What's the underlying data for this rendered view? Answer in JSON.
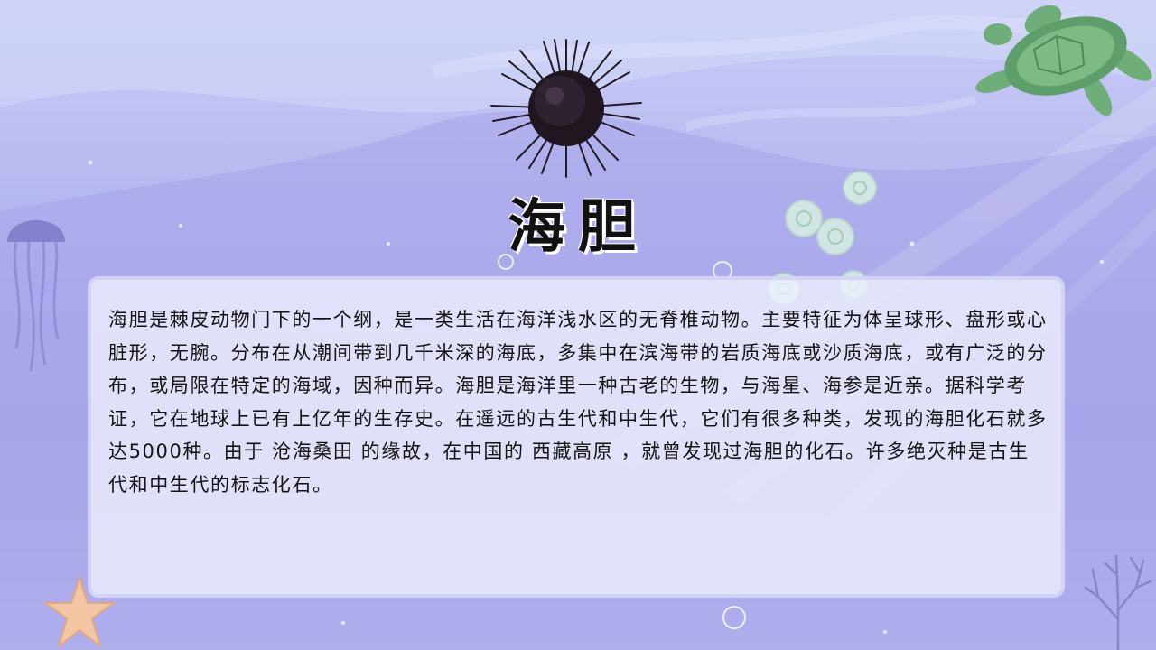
{
  "slide": {
    "title": "海胆",
    "body": "海胆是棘皮动物门下的一个纲，是一类生活在海洋浅水区的无脊椎动物。主要特征为体呈球形、盘形或心脏形，无腕。分布在从潮间带到几千米深的海底，多集中在滨海带的岩质海底或沙质海底，或有广泛的分布，或局限在特定的海域，因种而异。海胆是海洋里一种古老的生物，与海星、海参是近亲。据科学考证，它在地球上已有上亿年的生存史。在遥远的古生代和中生代，它们有很多种类，发现的海胆化石就多达5000种。由于 沧海桑田 的缘故，在中国的 西藏高原 ，就曾发现过海胆的化石。许多绝灭种是古生代和中生代的标志化石。"
  },
  "decorations": {
    "top_center": "sea-urchin-icon",
    "top_right": "sea-turtle-icon",
    "left": "jellyfish-icon",
    "center_right": "jellyfish-group-icon",
    "bottom_left": "starfish-icon",
    "bottom_right": "coral-icon"
  },
  "colors": {
    "background_top": "#c9cdf6",
    "background_mid": "#a9a6ea",
    "card": "#eceefd",
    "title_text": "#111111",
    "body_text": "#141414",
    "turtle": "#6fae78",
    "urchin": "#1f1620"
  }
}
